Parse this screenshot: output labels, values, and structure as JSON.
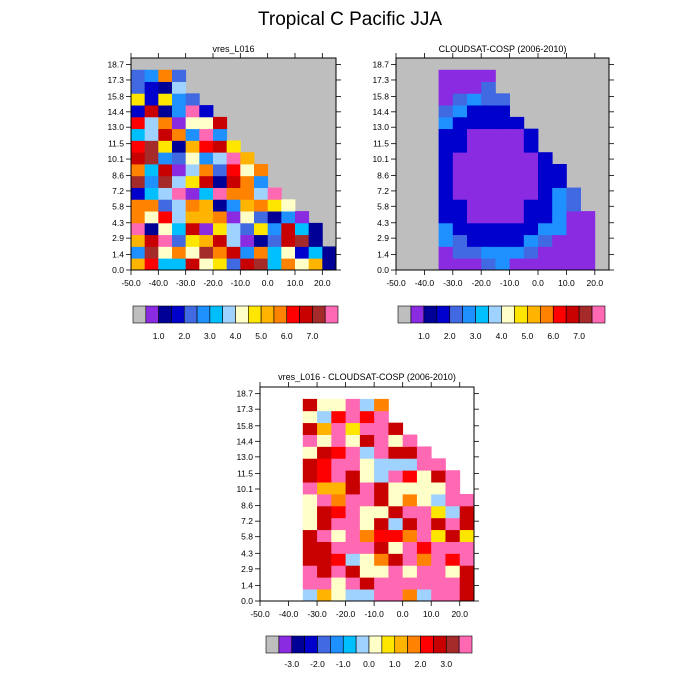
{
  "figure": {
    "title": "Tropical C Pacific JJA"
  },
  "chart_data": [
    {
      "type": "heatmap",
      "title": "vres_L016",
      "xlabel": "",
      "ylabel": "",
      "x_ticks": [
        "-50.0",
        "-40.0",
        "-30.0",
        "-20.0",
        "-10.0",
        "0.0",
        "10.0",
        "20.0"
      ],
      "y_ticks": [
        "0.0",
        "1.4",
        "2.9",
        "4.3",
        "5.8",
        "7.2",
        "8.6",
        "10.1",
        "11.5",
        "13.0",
        "14.4",
        "15.8",
        "17.3",
        "18.7"
      ],
      "xlim": [
        -50,
        25
      ],
      "ylim": [
        0,
        19.3
      ],
      "missing_color": "#bebebe",
      "colorbar_labels": [
        "1.0",
        "2.0",
        "3.0",
        "4.0",
        "5.0",
        "6.0",
        "7.0"
      ],
      "description": "CTP-tau style joint histogram, values 0-8; wedge shaped data region"
    },
    {
      "type": "heatmap",
      "title": "CLOUDSAT-COSP (2006-2010)",
      "xlabel": "",
      "ylabel": "",
      "x_ticks": [
        "-50.0",
        "-40.0",
        "-30.0",
        "-20.0",
        "-10.0",
        "0.0",
        "10.0",
        "20.0"
      ],
      "y_ticks": [
        "0.0",
        "1.4",
        "2.9",
        "4.3",
        "5.8",
        "7.2",
        "8.6",
        "10.1",
        "11.5",
        "13.0",
        "14.4",
        "15.8",
        "17.3",
        "18.7"
      ],
      "xlim": [
        -50,
        25
      ],
      "ylim": [
        0,
        19.3
      ],
      "missing_color": "#bebebe",
      "colorbar_labels": [
        "1.0",
        "2.0",
        "3.0",
        "4.0",
        "5.0",
        "6.0",
        "7.0"
      ]
    },
    {
      "type": "heatmap",
      "title": "vres_L016 - CLOUDSAT-COSP (2006-2010)",
      "xlabel": "",
      "ylabel": "",
      "x_ticks": [
        "-50.0",
        "-40.0",
        "-30.0",
        "-20.0",
        "-10.0",
        "0.0",
        "10.0",
        "20.0"
      ],
      "y_ticks": [
        "0.0",
        "1.4",
        "2.9",
        "4.3",
        "5.8",
        "7.2",
        "8.6",
        "10.1",
        "11.5",
        "13.0",
        "14.4",
        "15.8",
        "17.3",
        "18.7"
      ],
      "xlim": [
        -50,
        25
      ],
      "ylim": [
        0,
        19.3
      ],
      "colorbar_labels": [
        "-3.0",
        "-2.0",
        "-1.0",
        "0.0",
        "1.0",
        "2.0",
        "3.0"
      ]
    }
  ],
  "palettes": {
    "abs": [
      "#bebebe",
      "#8a2be2",
      "#000096",
      "#0000cd",
      "#4169e1",
      "#1e90ff",
      "#00bfff",
      "#a0d2ff",
      "#ffffc8",
      "#ffe600",
      "#ffb400",
      "#ff8200",
      "#ff0000",
      "#c80000",
      "#a52a2a",
      "#ff69b4"
    ],
    "diff": [
      "#bebebe",
      "#8a2be2",
      "#000096",
      "#0000cd",
      "#4169e1",
      "#1e90ff",
      "#00bfff",
      "#a0d2ff",
      "#ffffc8",
      "#ffe600",
      "#ffb400",
      "#ff8200",
      "#ff0000",
      "#c80000",
      "#a52a2a",
      "#ff69b4"
    ]
  }
}
